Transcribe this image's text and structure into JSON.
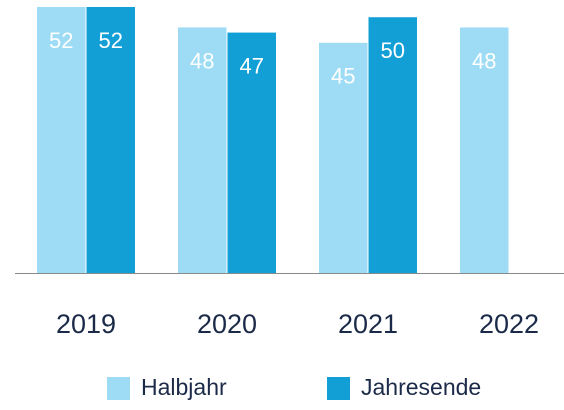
{
  "chart_data": {
    "type": "bar",
    "categories": [
      "2019",
      "2020",
      "2021",
      "2022"
    ],
    "series": [
      {
        "name": "Halbjahr",
        "color": "#9ddcf4",
        "values": [
          52,
          48,
          45,
          48
        ]
      },
      {
        "name": "Jahresende",
        "color": "#129fd6",
        "values": [
          52,
          47,
          50,
          null
        ]
      }
    ],
    "ylim": [
      0,
      52
    ]
  }
}
